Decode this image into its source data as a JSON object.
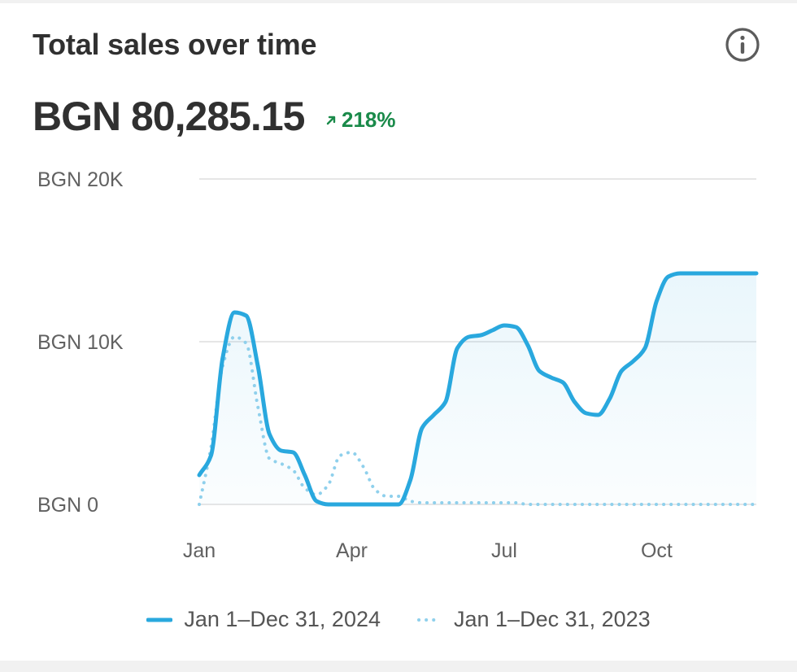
{
  "card": {
    "title": "Total sales over time",
    "total": "BGN 80,285.15",
    "change": "218%",
    "info_icon": "info-circle-icon",
    "change_icon": "arrow-up-right-icon"
  },
  "colors": {
    "primary_series": "#29a8de",
    "comparison_series": "#8fd0ec",
    "positive_change": "#1a8a4a",
    "grid": "#e6e6e6",
    "axis_text": "#616161"
  },
  "chart_data": {
    "type": "line",
    "title": "Total sales over time",
    "y_tick_labels": [
      "BGN 0",
      "BGN 10K",
      "BGN 20K"
    ],
    "y_ticks": [
      0,
      10000,
      20000
    ],
    "ylim": [
      0,
      20000
    ],
    "x_tick_labels": [
      "Jan",
      "Apr",
      "Jul",
      "Oct"
    ],
    "x_ticks": [
      0,
      13,
      26,
      39
    ],
    "xlim": [
      0,
      47.5
    ],
    "grid": true,
    "legend_position": "bottom",
    "series": [
      {
        "name": "Jan 1–Dec 31, 2024",
        "style": "solid",
        "x": [
          0,
          1,
          2,
          3,
          4,
          5,
          6,
          7,
          8,
          9,
          10,
          11,
          12,
          13,
          14,
          15,
          16,
          17,
          18,
          19,
          20,
          21,
          22,
          23,
          24,
          25,
          26,
          27,
          28,
          29,
          30,
          31,
          32,
          33,
          34,
          35,
          36,
          37,
          38,
          39,
          40,
          41,
          42,
          43,
          44,
          45,
          46,
          47,
          47.5
        ],
        "values": [
          1800,
          3000,
          9000,
          11800,
          11600,
          8500,
          4300,
          3300,
          3200,
          1800,
          200,
          0,
          0,
          0,
          0,
          0,
          0,
          0,
          1500,
          4700,
          5500,
          6300,
          9600,
          10300,
          10400,
          10700,
          11000,
          10900,
          9800,
          8200,
          7800,
          7500,
          6300,
          5600,
          5500,
          6500,
          8200,
          8800,
          9600,
          12500,
          14000,
          14200,
          14200,
          14200,
          14200,
          14200,
          14200,
          14200,
          14200
        ]
      },
      {
        "name": "Jan 1–Dec 31, 2023",
        "style": "dotted",
        "x": [
          0,
          1,
          2,
          3,
          4,
          5,
          6,
          7,
          8,
          9,
          10,
          11,
          12,
          13,
          14,
          15,
          16,
          17,
          18,
          19,
          20,
          21,
          22,
          23,
          24,
          25,
          26,
          27,
          28,
          29,
          30,
          31,
          32,
          33,
          34,
          35,
          36,
          37,
          38,
          39,
          40,
          41,
          42,
          43,
          44,
          45,
          46,
          47,
          47.5
        ],
        "values": [
          0,
          3500,
          8500,
          10300,
          9900,
          6000,
          2800,
          2500,
          2100,
          1000,
          600,
          1200,
          3000,
          3200,
          2300,
          900,
          500,
          500,
          200,
          100,
          100,
          100,
          100,
          100,
          100,
          100,
          100,
          100,
          0,
          0,
          0,
          0,
          0,
          0,
          0,
          0,
          0,
          0,
          0,
          0,
          0,
          0,
          0,
          0,
          0,
          0,
          0,
          0,
          0
        ]
      }
    ]
  }
}
